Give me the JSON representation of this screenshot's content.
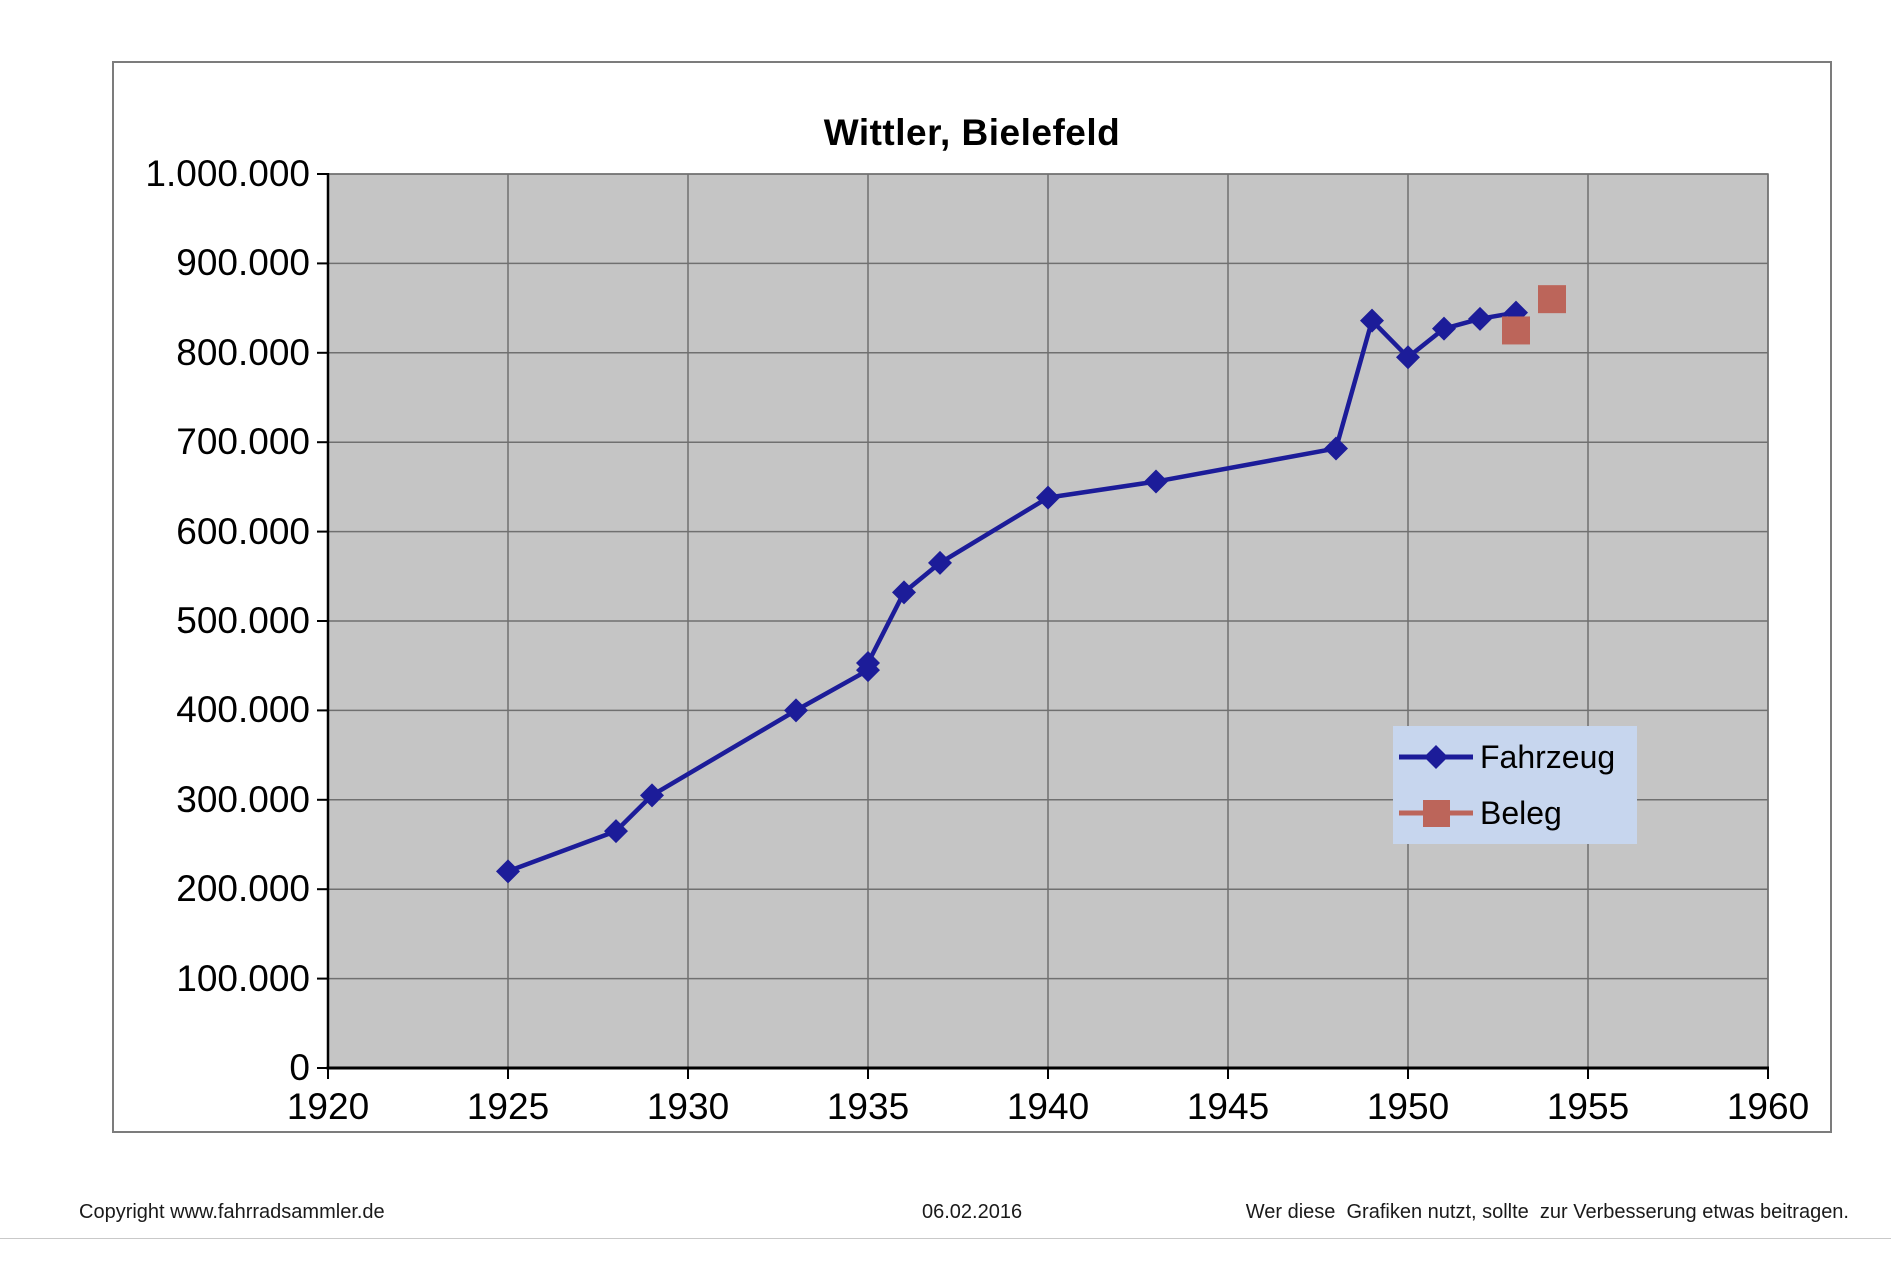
{
  "title": "Wittler, Bielefeld",
  "footer": {
    "left": "Copyright www.fahrradsammler.de",
    "center": "06.02.2016",
    "right": "Wer diese  Grafiken nutzt, sollte  zur Verbesserung etwas beitragen."
  },
  "legend": {
    "background": "#c7d6ee",
    "position": "middle-right",
    "entries": [
      {
        "label": "Fahrzeug",
        "marker": "diamond",
        "color": "#1c1c99"
      },
      {
        "label": "Beleg",
        "marker": "square",
        "color": "#bc655a"
      }
    ]
  },
  "chart_data": {
    "type": "line",
    "title": "Wittler, Bielefeld",
    "xlabel": "",
    "ylabel": "",
    "xlim": [
      1920,
      1960
    ],
    "ylim": [
      0,
      1000000
    ],
    "x_ticks": [
      1920,
      1925,
      1930,
      1935,
      1940,
      1945,
      1950,
      1955,
      1960
    ],
    "y_ticks": [
      0,
      100000,
      200000,
      300000,
      400000,
      500000,
      600000,
      700000,
      800000,
      900000,
      1000000
    ],
    "y_tick_labels": [
      "0",
      "100.000",
      "200.000",
      "300.000",
      "400.000",
      "500.000",
      "600.000",
      "700.000",
      "800.000",
      "900.000",
      "1.000.000"
    ],
    "grid": true,
    "plot_background": "#c5c5c5",
    "gridline_color": "#707070",
    "series": [
      {
        "name": "Fahrzeug",
        "type": "line-with-markers",
        "marker": "diamond",
        "color": "#1c1c99",
        "points": [
          [
            1925,
            220000
          ],
          [
            1928,
            265000
          ],
          [
            1929,
            305000
          ],
          [
            1933,
            400000
          ],
          [
            1935,
            445000
          ],
          [
            1935,
            453000
          ],
          [
            1936,
            532000
          ],
          [
            1937,
            565000
          ],
          [
            1940,
            638000
          ],
          [
            1943,
            656000
          ],
          [
            1948,
            693000
          ],
          [
            1949,
            836000
          ],
          [
            1950,
            795000
          ],
          [
            1951,
            827000
          ],
          [
            1952,
            838000
          ],
          [
            1953,
            845000
          ]
        ]
      },
      {
        "name": "Beleg",
        "type": "scatter",
        "marker": "square",
        "color": "#bc655a",
        "points": [
          [
            1953,
            825000
          ],
          [
            1954,
            860000
          ]
        ]
      }
    ]
  }
}
